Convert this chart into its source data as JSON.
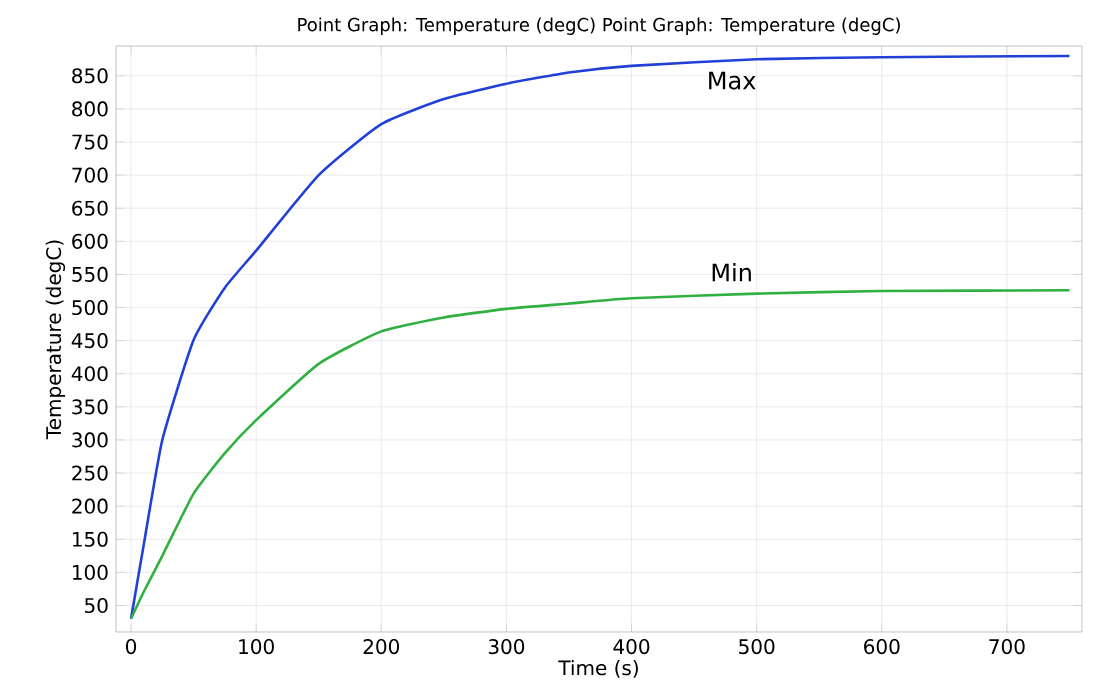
{
  "chart_data": {
    "type": "line",
    "title": "Point Graph: Temperature (degC)  Point Graph: Temperature (degC)",
    "xlabel": "Time (s)",
    "ylabel": "Temperature (degC)",
    "x": [
      0,
      10,
      25,
      50,
      75,
      100,
      150,
      200,
      250,
      300,
      350,
      400,
      500,
      600,
      750
    ],
    "series": [
      {
        "name": "Max",
        "color": "#2040d8",
        "values": [
          30,
          140,
          300,
          451,
          530,
          586,
          700,
          777,
          815,
          838,
          855,
          865,
          875,
          878,
          880
        ]
      },
      {
        "name": "Min",
        "color": "#30b040",
        "values": [
          30,
          70,
          125,
          219,
          280,
          330,
          415,
          464,
          485,
          498,
          506,
          514,
          521,
          525,
          526
        ]
      }
    ],
    "xlim": [
      -12,
      760
    ],
    "ylim": [
      10,
      895
    ],
    "xticks": [
      0,
      100,
      200,
      300,
      400,
      500,
      600,
      700
    ],
    "yticks": [
      50,
      100,
      150,
      200,
      250,
      300,
      350,
      400,
      450,
      500,
      550,
      600,
      650,
      700,
      750,
      800,
      850
    ],
    "grid": true,
    "legend": false,
    "marker": "none",
    "line_style": "solid"
  }
}
